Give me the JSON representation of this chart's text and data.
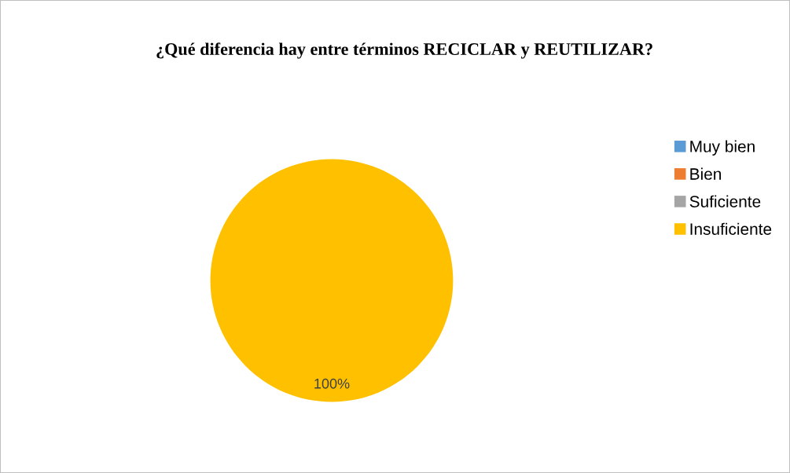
{
  "chart_data": {
    "type": "pie",
    "title": "¿Qué diferencia hay entre términos RECICLAR y REUTILIZAR?",
    "categories": [
      "Muy bien",
      "Bien",
      "Suficiente",
      "Insuficiente"
    ],
    "values": [
      0,
      0,
      0,
      100
    ],
    "colors": [
      "#5b9bd5",
      "#ed7d31",
      "#a5a5a5",
      "#ffc000"
    ],
    "value_labels": [
      null,
      null,
      null,
      "100%"
    ],
    "legend": "right"
  }
}
